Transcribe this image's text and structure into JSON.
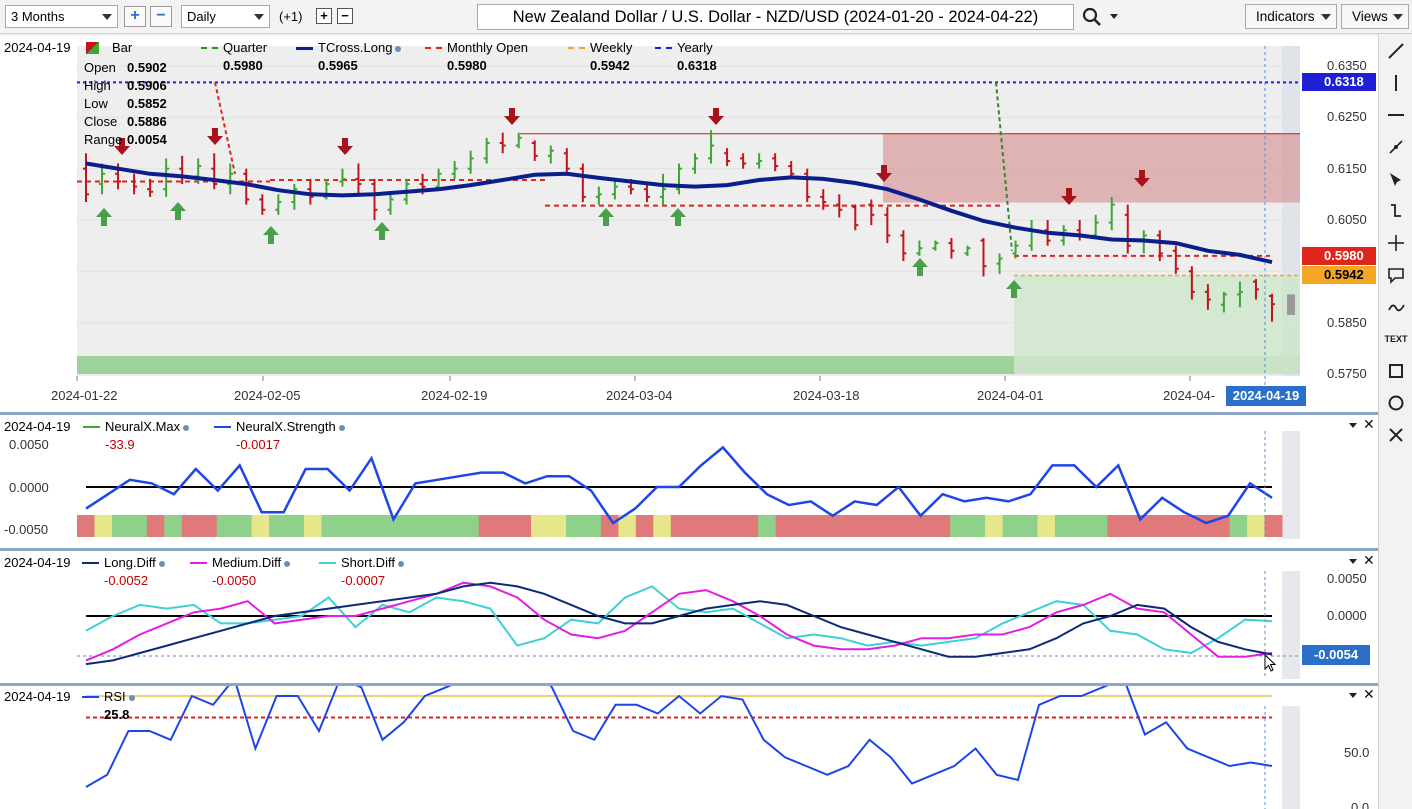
{
  "toolbar": {
    "range_value": "3 Months",
    "period_value": "Daily",
    "offset_label": "(+1)",
    "title": "New Zealand Dollar / U.S. Dollar - NZD/USD (2024-01-20 - 2024-04-22)",
    "indicators_label": "Indicators",
    "views_label": "Views"
  },
  "price_panel": {
    "date": "2024-04-19",
    "ohlc": [
      {
        "label": "Open",
        "value": "0.5902"
      },
      {
        "label": "High",
        "value": "0.5906"
      },
      {
        "label": "Low",
        "value": "0.5852"
      },
      {
        "label": "Close",
        "value": "0.5886"
      },
      {
        "label": "Range",
        "value": "0.0054"
      }
    ],
    "legend": [
      {
        "name": "Bar",
        "value": ""
      },
      {
        "name": "Quarter",
        "value": "0.5980"
      },
      {
        "name": "TCross.Long",
        "value": "0.5965"
      },
      {
        "name": "Monthly Open",
        "value": "0.5980"
      },
      {
        "name": "Weekly",
        "value": "0.5942"
      },
      {
        "name": "Yearly",
        "value": "0.6318"
      }
    ],
    "y_ticks": [
      "0.6350",
      "0.6250",
      "0.6150",
      "0.6050",
      "0.5850",
      "0.5750"
    ],
    "x_ticks": [
      "2024-01-22",
      "2024-02-05",
      "2024-02-19",
      "2024-03-04",
      "2024-03-18",
      "2024-04-01",
      "2024-04-"
    ],
    "cursor_date": "2024-04-19",
    "price_tags": [
      {
        "value": "0.6318",
        "color": "#1f1fd6"
      },
      {
        "value": "0.5980",
        "color": "#e0261b"
      },
      {
        "value": "0.5942",
        "color": "#f5a623"
      }
    ]
  },
  "neural_panel": {
    "date": "2024-04-19",
    "legend": [
      {
        "name": "NeuralX.Max",
        "value": "-33.9"
      },
      {
        "name": "NeuralX.Strength",
        "value": "-0.0017"
      }
    ],
    "y_ticks": [
      "0.0050",
      "0.0000",
      "-0.0050"
    ]
  },
  "diff_panel": {
    "date": "2024-04-19",
    "legend": [
      {
        "name": "Long.Diff",
        "value": "-0.0052"
      },
      {
        "name": "Medium.Diff",
        "value": "-0.0050"
      },
      {
        "name": "Short.Diff",
        "value": "-0.0007"
      }
    ],
    "y_ticks": [
      "0.0050",
      "0.0000"
    ],
    "cursor_value": "-0.0054"
  },
  "rsi_panel": {
    "date": "2024-04-19",
    "legend": [
      {
        "name": "RSI",
        "value": "25.8"
      }
    ],
    "y_ticks": [
      "50.0",
      "0.0"
    ]
  },
  "sidebar": {
    "text_tool_label": "TEXT"
  },
  "colors": {
    "up": "#3fa535",
    "down": "#c0151b",
    "tcross": "#0a1e8c",
    "yearly": "#1f1fd6",
    "monthly": "#e0261b",
    "weekly": "#f5a623",
    "quarter": "#2e8b2e",
    "strength": "#1e46e6",
    "long_diff": "#0d2a7a",
    "medium_diff": "#e21ee2",
    "short_diff": "#3fd0d6",
    "rsi": "#1e46e6"
  }
}
